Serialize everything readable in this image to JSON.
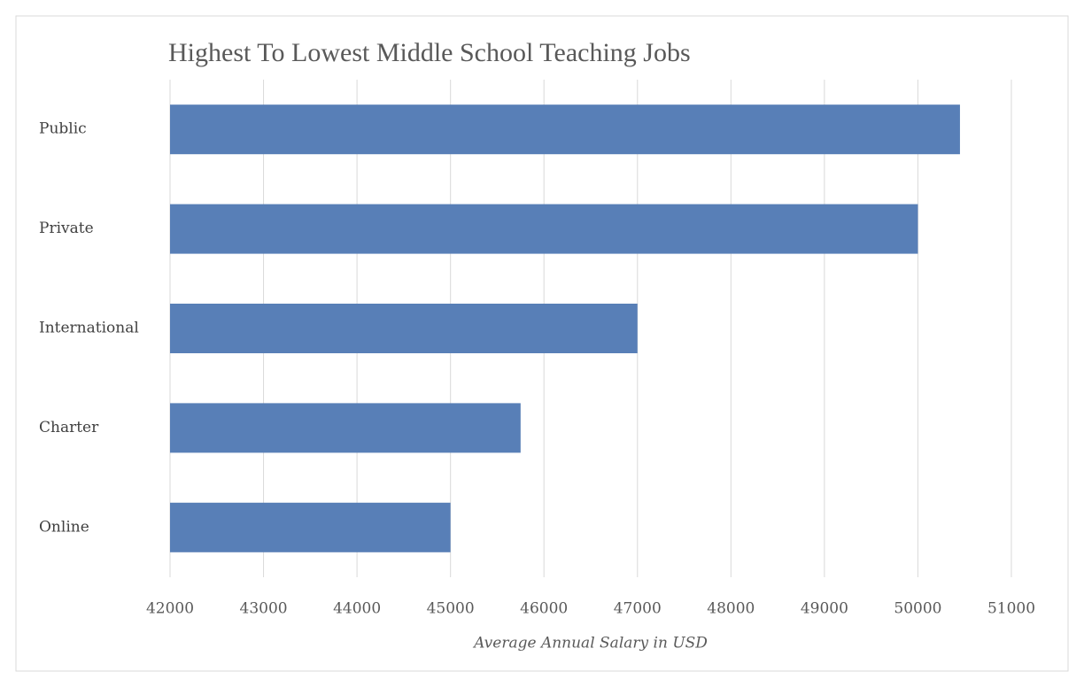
{
  "chart_data": {
    "type": "bar",
    "orientation": "horizontal",
    "title": "Highest To Lowest Middle School Teaching Jobs",
    "x_label": "Average Annual Salary in USD",
    "categories": [
      "Public",
      "Private",
      "International",
      "Charter",
      "Online"
    ],
    "values": [
      50450,
      50000,
      47000,
      45750,
      45000
    ],
    "color": "#587fb7",
    "xlim": [
      42000,
      51000
    ],
    "xticks": [
      42000,
      43000,
      44000,
      45000,
      46000,
      47000,
      48000,
      49000,
      50000,
      51000
    ],
    "grid": true
  }
}
